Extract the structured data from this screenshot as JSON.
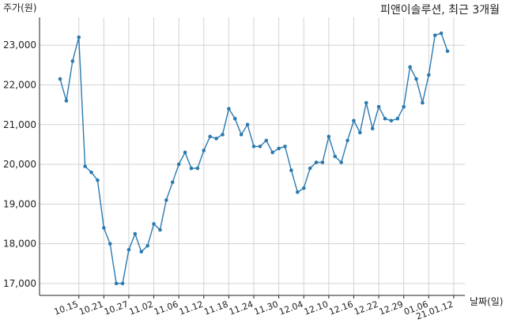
{
  "chart_data": {
    "type": "line",
    "title": "피앤이솔루션, 최근 3개월",
    "ylabel": "주가(원)",
    "xlabel": "날짜(일)",
    "ylim": [
      16700,
      23700
    ],
    "yticks": [
      17000,
      18000,
      19000,
      20000,
      21000,
      22000,
      23000
    ],
    "ytick_labels": [
      "17,000",
      "18,000",
      "19,000",
      "20,000",
      "21,000",
      "22,000",
      "23,000"
    ],
    "xtick_labels": [
      "10.15",
      "10.21",
      "10.27",
      "11.02",
      "11.06",
      "11.12",
      "11.18",
      "11.24",
      "11.30",
      "12.04",
      "12.10",
      "12.16",
      "12.22",
      "12.29",
      "01.06",
      "21.01.12"
    ],
    "xtick_index": [
      3,
      7,
      11,
      15,
      19,
      23,
      27,
      31,
      35,
      39,
      43,
      47,
      51,
      55,
      59,
      63
    ],
    "grid": true,
    "line_color": "#2a7ab0",
    "series": [
      {
        "values": [
          22150,
          21600,
          22600,
          23200,
          19950,
          19800,
          19600,
          18400,
          18000,
          17000,
          17000,
          17850,
          18250,
          17800,
          17950,
          18500,
          18350,
          19100,
          19550,
          20000,
          20300,
          19900,
          19900,
          20350,
          20700,
          20650,
          20750,
          21400,
          21150,
          20750,
          21000,
          20450,
          20450,
          20600,
          20300,
          20400,
          20450,
          19850,
          19300,
          19400,
          19900,
          20050,
          20050,
          20700,
          20200,
          20050,
          20600,
          21100,
          20800,
          21550,
          20900,
          21450,
          21150,
          21100,
          21150,
          21450,
          22450,
          22150,
          21550,
          22250,
          23250,
          23300,
          22850
        ]
      }
    ]
  }
}
